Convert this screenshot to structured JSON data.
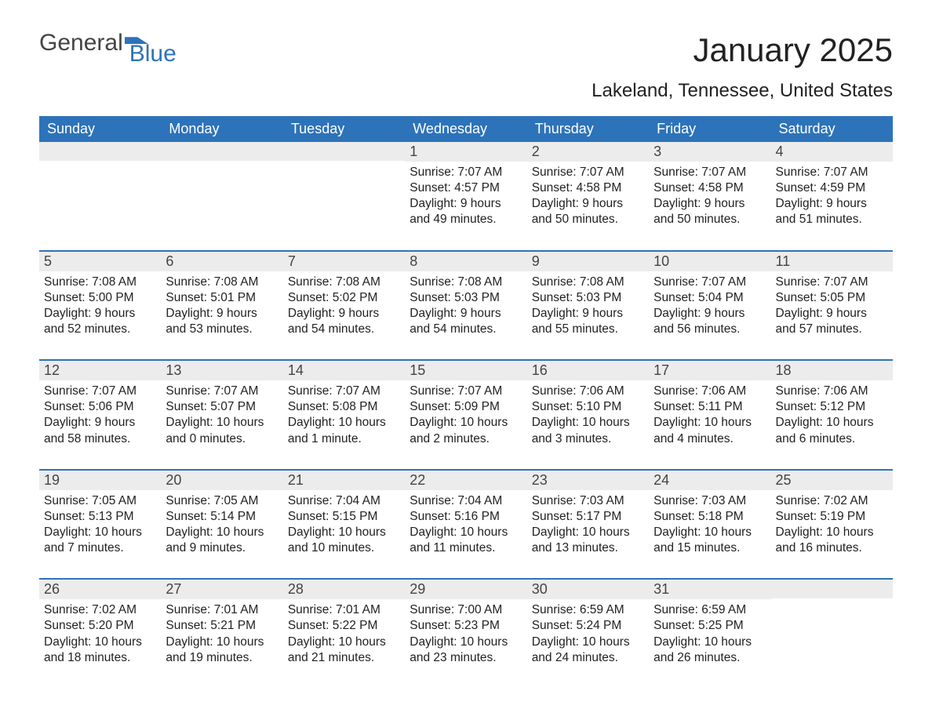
{
  "brand": {
    "left": "General",
    "right": "Blue"
  },
  "title": "January 2025",
  "location": "Lakeland, Tennessee, United States",
  "colors": {
    "accent": "#2d73b9",
    "daynum_bg": "#ececec",
    "text": "#222222",
    "background": "#ffffff"
  },
  "weekdays": [
    "Sunday",
    "Monday",
    "Tuesday",
    "Wednesday",
    "Thursday",
    "Friday",
    "Saturday"
  ],
  "first_weekday_index": 3,
  "days": [
    {
      "n": 1,
      "sunrise": "7:07 AM",
      "sunset": "4:57 PM",
      "daylight": "9 hours and 49 minutes."
    },
    {
      "n": 2,
      "sunrise": "7:07 AM",
      "sunset": "4:58 PM",
      "daylight": "9 hours and 50 minutes."
    },
    {
      "n": 3,
      "sunrise": "7:07 AM",
      "sunset": "4:58 PM",
      "daylight": "9 hours and 50 minutes."
    },
    {
      "n": 4,
      "sunrise": "7:07 AM",
      "sunset": "4:59 PM",
      "daylight": "9 hours and 51 minutes."
    },
    {
      "n": 5,
      "sunrise": "7:08 AM",
      "sunset": "5:00 PM",
      "daylight": "9 hours and 52 minutes."
    },
    {
      "n": 6,
      "sunrise": "7:08 AM",
      "sunset": "5:01 PM",
      "daylight": "9 hours and 53 minutes."
    },
    {
      "n": 7,
      "sunrise": "7:08 AM",
      "sunset": "5:02 PM",
      "daylight": "9 hours and 54 minutes."
    },
    {
      "n": 8,
      "sunrise": "7:08 AM",
      "sunset": "5:03 PM",
      "daylight": "9 hours and 54 minutes."
    },
    {
      "n": 9,
      "sunrise": "7:08 AM",
      "sunset": "5:03 PM",
      "daylight": "9 hours and 55 minutes."
    },
    {
      "n": 10,
      "sunrise": "7:07 AM",
      "sunset": "5:04 PM",
      "daylight": "9 hours and 56 minutes."
    },
    {
      "n": 11,
      "sunrise": "7:07 AM",
      "sunset": "5:05 PM",
      "daylight": "9 hours and 57 minutes."
    },
    {
      "n": 12,
      "sunrise": "7:07 AM",
      "sunset": "5:06 PM",
      "daylight": "9 hours and 58 minutes."
    },
    {
      "n": 13,
      "sunrise": "7:07 AM",
      "sunset": "5:07 PM",
      "daylight": "10 hours and 0 minutes."
    },
    {
      "n": 14,
      "sunrise": "7:07 AM",
      "sunset": "5:08 PM",
      "daylight": "10 hours and 1 minute."
    },
    {
      "n": 15,
      "sunrise": "7:07 AM",
      "sunset": "5:09 PM",
      "daylight": "10 hours and 2 minutes."
    },
    {
      "n": 16,
      "sunrise": "7:06 AM",
      "sunset": "5:10 PM",
      "daylight": "10 hours and 3 minutes."
    },
    {
      "n": 17,
      "sunrise": "7:06 AM",
      "sunset": "5:11 PM",
      "daylight": "10 hours and 4 minutes."
    },
    {
      "n": 18,
      "sunrise": "7:06 AM",
      "sunset": "5:12 PM",
      "daylight": "10 hours and 6 minutes."
    },
    {
      "n": 19,
      "sunrise": "7:05 AM",
      "sunset": "5:13 PM",
      "daylight": "10 hours and 7 minutes."
    },
    {
      "n": 20,
      "sunrise": "7:05 AM",
      "sunset": "5:14 PM",
      "daylight": "10 hours and 9 minutes."
    },
    {
      "n": 21,
      "sunrise": "7:04 AM",
      "sunset": "5:15 PM",
      "daylight": "10 hours and 10 minutes."
    },
    {
      "n": 22,
      "sunrise": "7:04 AM",
      "sunset": "5:16 PM",
      "daylight": "10 hours and 11 minutes."
    },
    {
      "n": 23,
      "sunrise": "7:03 AM",
      "sunset": "5:17 PM",
      "daylight": "10 hours and 13 minutes."
    },
    {
      "n": 24,
      "sunrise": "7:03 AM",
      "sunset": "5:18 PM",
      "daylight": "10 hours and 15 minutes."
    },
    {
      "n": 25,
      "sunrise": "7:02 AM",
      "sunset": "5:19 PM",
      "daylight": "10 hours and 16 minutes."
    },
    {
      "n": 26,
      "sunrise": "7:02 AM",
      "sunset": "5:20 PM",
      "daylight": "10 hours and 18 minutes."
    },
    {
      "n": 27,
      "sunrise": "7:01 AM",
      "sunset": "5:21 PM",
      "daylight": "10 hours and 19 minutes."
    },
    {
      "n": 28,
      "sunrise": "7:01 AM",
      "sunset": "5:22 PM",
      "daylight": "10 hours and 21 minutes."
    },
    {
      "n": 29,
      "sunrise": "7:00 AM",
      "sunset": "5:23 PM",
      "daylight": "10 hours and 23 minutes."
    },
    {
      "n": 30,
      "sunrise": "6:59 AM",
      "sunset": "5:24 PM",
      "daylight": "10 hours and 24 minutes."
    },
    {
      "n": 31,
      "sunrise": "6:59 AM",
      "sunset": "5:25 PM",
      "daylight": "10 hours and 26 minutes."
    }
  ],
  "labels": {
    "sunrise": "Sunrise:",
    "sunset": "Sunset:",
    "daylight": "Daylight:"
  }
}
